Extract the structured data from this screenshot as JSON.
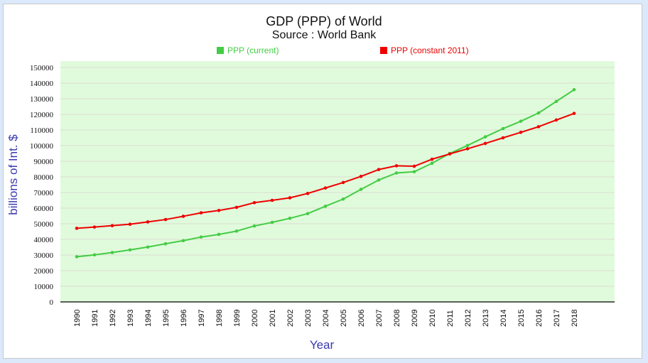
{
  "chart_data": {
    "type": "line",
    "title": "GDP (PPP) of World",
    "subtitle": "Source : World Bank",
    "xlabel": "Year",
    "ylabel": "billions of Int. $",
    "ylim": [
      0,
      150000
    ],
    "yticks": [
      0,
      10000,
      20000,
      30000,
      40000,
      50000,
      60000,
      70000,
      80000,
      90000,
      100000,
      110000,
      120000,
      130000,
      140000,
      150000
    ],
    "grid": true,
    "legend_position": "top",
    "x": [
      "1990",
      "1991",
      "1992",
      "1993",
      "1994",
      "1995",
      "1996",
      "1997",
      "1998",
      "1999",
      "2000",
      "2001",
      "2002",
      "2003",
      "2004",
      "2005",
      "2006",
      "2007",
      "2008",
      "2009",
      "2010",
      "2011",
      "2012",
      "2013",
      "2014",
      "2015",
      "2016",
      "2017",
      "2018"
    ],
    "series": [
      {
        "name": "PPP (current)",
        "color": "#44cc44",
        "values": [
          28900,
          30100,
          31600,
          33300,
          35100,
          37200,
          39200,
          41500,
          43200,
          45300,
          48600,
          50900,
          53500,
          56500,
          61200,
          65800,
          72000,
          78000,
          82500,
          83300,
          88700,
          95000,
          100100,
          105600,
          110900,
          115600,
          120900,
          128300,
          135800
        ]
      },
      {
        "name": "PPP (constant 2011)",
        "color": "#ee0000",
        "values": [
          47100,
          47900,
          48800,
          49700,
          51200,
          52700,
          54800,
          57000,
          58500,
          60500,
          63500,
          65000,
          66600,
          69400,
          72900,
          76400,
          80300,
          84700,
          87100,
          86800,
          91300,
          94700,
          98000,
          101400,
          105000,
          108500,
          112100,
          116400,
          120600
        ]
      }
    ],
    "colors": {
      "plot_background": "#e0fbdc",
      "gridline": "#dcdcd0",
      "axis_title": "#3a3ab0",
      "page_background": "#dbe9fb"
    }
  }
}
